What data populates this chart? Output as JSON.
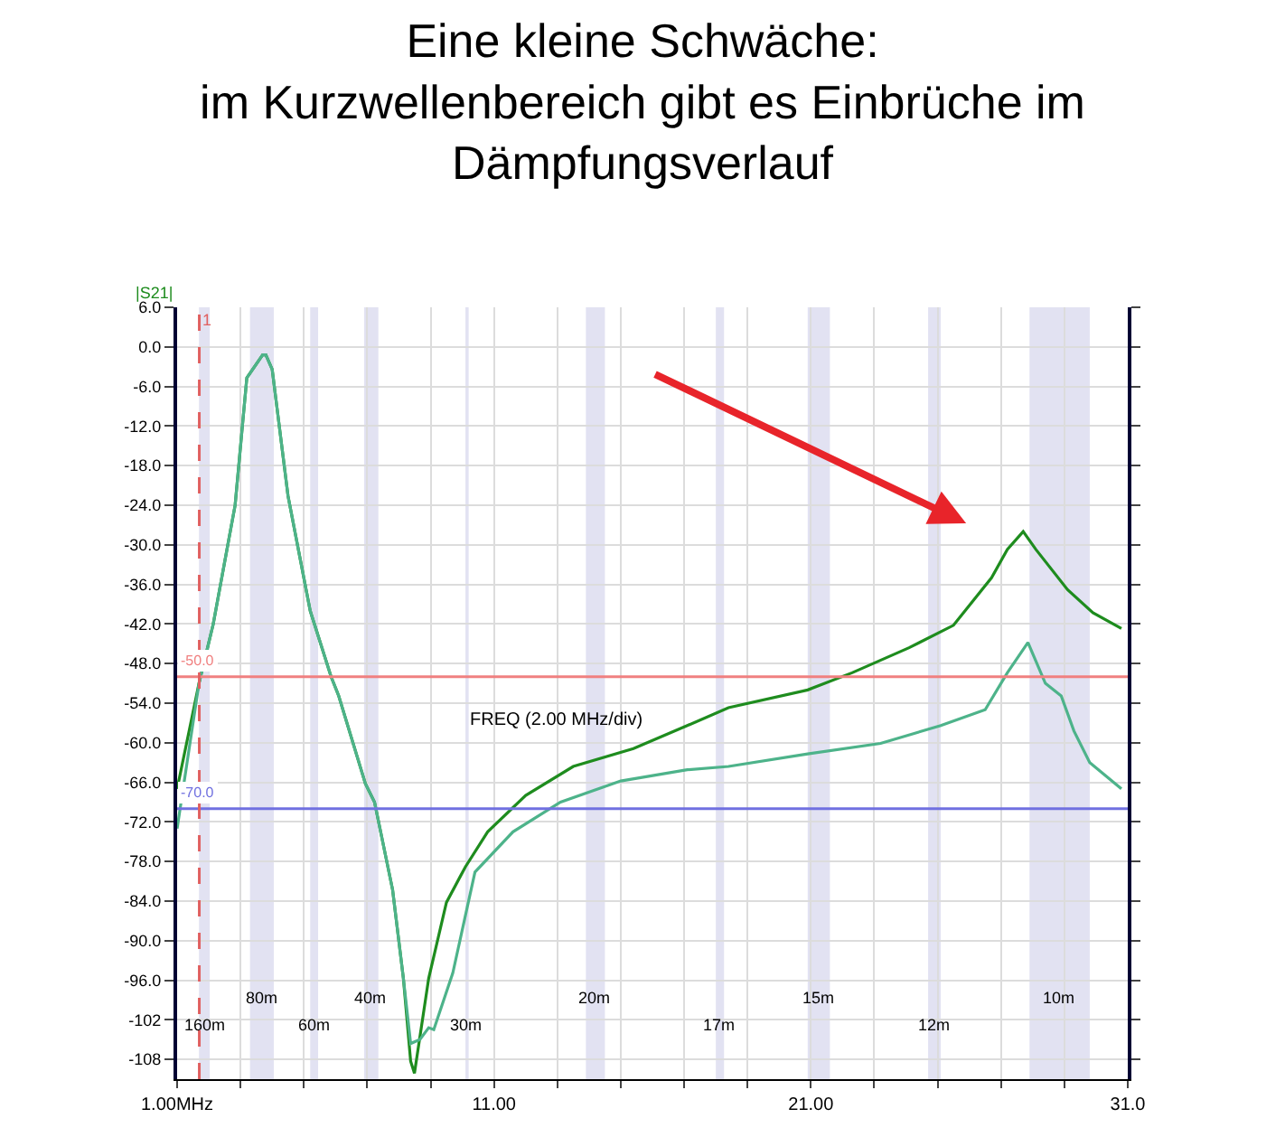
{
  "chart_data": {
    "type": "line",
    "title": "Eine kleine Schwäche:\nim Kurzwellenbereich gibt es Einbrüche im\nDämpfungsverlauf",
    "xlabel": "FREQ (2.00 MHz/div)",
    "ylabel": "|S21|",
    "xlim": [
      1,
      31
    ],
    "ylim": [
      -111,
      6
    ],
    "xticks": [
      {
        "value": 1,
        "label": "1.00MHz"
      },
      {
        "value": 3,
        "label": null
      },
      {
        "value": 5,
        "label": null
      },
      {
        "value": 7,
        "label": null
      },
      {
        "value": 9,
        "label": null
      },
      {
        "value": 11,
        "label": "11.00"
      },
      {
        "value": 13,
        "label": null
      },
      {
        "value": 15,
        "label": null
      },
      {
        "value": 17,
        "label": null
      },
      {
        "value": 19,
        "label": null
      },
      {
        "value": 21,
        "label": "21.00"
      },
      {
        "value": 23,
        "label": null
      },
      {
        "value": 25,
        "label": null
      },
      {
        "value": 27,
        "label": null
      },
      {
        "value": 29,
        "label": null
      },
      {
        "value": 31,
        "label": "31.0"
      }
    ],
    "yticks": [
      {
        "value": 6,
        "label": "6.0"
      },
      {
        "value": 0,
        "label": "0.0"
      },
      {
        "value": -6,
        "label": "-6.0"
      },
      {
        "value": -12,
        "label": "-12.0"
      },
      {
        "value": -18,
        "label": "-18.0"
      },
      {
        "value": -24,
        "label": "-24.0"
      },
      {
        "value": -30,
        "label": "-30.0"
      },
      {
        "value": -36,
        "label": "-36.0"
      },
      {
        "value": -42,
        "label": "-42.0"
      },
      {
        "value": -48,
        "label": "-48.0"
      },
      {
        "value": -54,
        "label": "-54.0"
      },
      {
        "value": -60,
        "label": "-60.0"
      },
      {
        "value": -66,
        "label": "-66.0"
      },
      {
        "value": -72,
        "label": "-72.0"
      },
      {
        "value": -78,
        "label": "-78.0"
      },
      {
        "value": -84,
        "label": "-84.0"
      },
      {
        "value": -90,
        "label": "-90.0"
      },
      {
        "value": -96,
        "label": "-96.0"
      },
      -102,
      -108
    ],
    "grid": true,
    "marker": "none",
    "line_style": "solid",
    "series": [
      {
        "color": "#1e8c1e",
        "x": [
          1,
          1.69,
          2.14,
          2.83,
          3.2,
          3.7,
          3.8,
          4.0,
          4.5,
          5.2,
          5.86,
          6.1,
          6.94,
          7.23,
          7.8,
          8.14,
          8.37,
          8.49,
          8.94,
          9.5,
          10.1,
          10.8,
          12,
          13.5,
          15.4,
          17.1,
          18.4,
          20.9,
          22.3,
          24.1,
          25.5,
          26.7,
          27.2,
          27.7,
          28.1,
          29.1,
          29.9,
          30.8
        ],
        "values": [
          -67,
          -51,
          -42,
          -24,
          -4.7,
          -1.2,
          -1.2,
          -3.4,
          -22.6,
          -40,
          -50,
          -52.9,
          -66.2,
          -69,
          -82.3,
          -95.7,
          -108.3,
          -110.1,
          -95.7,
          -84.2,
          -78.8,
          -73.5,
          -68,
          -63.6,
          -60.9,
          -57.4,
          -54.7,
          -52,
          -49.4,
          -45.6,
          -42.2,
          -35,
          -30.7,
          -28,
          -30.7,
          -36.8,
          -40.3,
          -42.7
        ]
      },
      {
        "color": "#4db38a",
        "x": [
          1,
          1.69,
          2.14,
          2.83,
          3.2,
          3.7,
          3.8,
          4.0,
          4.5,
          5.2,
          5.86,
          6.1,
          6.94,
          7.23,
          7.8,
          8.14,
          8.37,
          8.66,
          8.94,
          9.1,
          9.7,
          10.4,
          11.6,
          13.1,
          15,
          17.1,
          18.4,
          20.9,
          23.2,
          25.1,
          26.5,
          27.2,
          27.85,
          28.4,
          28.9,
          29.3,
          29.8,
          30.8
        ],
        "values": [
          -73,
          -51,
          -42,
          -24,
          -4.7,
          -1.2,
          -1.2,
          -3.4,
          -22.6,
          -40,
          -50,
          -52.9,
          -66.2,
          -69,
          -82.3,
          -95.7,
          -105.6,
          -105,
          -103.2,
          -103.5,
          -94.9,
          -79.6,
          -73.5,
          -69,
          -65.8,
          -64.1,
          -63.6,
          -61.7,
          -60.1,
          -57.4,
          -55,
          -49.4,
          -44.8,
          -51,
          -52.9,
          -58.2,
          -63,
          -67
        ]
      }
    ],
    "ref_lines": [
      {
        "axis": "y",
        "value": -50,
        "label": "-50.0",
        "color": "#f08080"
      },
      {
        "axis": "y",
        "value": -70,
        "label": "-70.0",
        "color": "#7070e0"
      },
      {
        "axis": "x",
        "value": 1.7,
        "color": "#e06060",
        "line_style": "dashed"
      }
    ],
    "annotations": [
      {
        "text": "1",
        "x": 1.7,
        "y": 4
      }
    ],
    "bands": [
      {
        "axis": "x",
        "from": 1.69,
        "to": 2.03,
        "label": "160m",
        "color": "#e2e2f2"
      },
      {
        "axis": "x",
        "from": 3.3,
        "to": 4.05,
        "label": "80m",
        "color": "#e2e2f2"
      },
      {
        "axis": "x",
        "from": 5.2,
        "to": 5.45,
        "label": "60m",
        "color": "#e2e2f2"
      },
      {
        "axis": "x",
        "from": 6.9,
        "to": 7.35,
        "label": "40m",
        "color": "#e2e2f2"
      },
      {
        "axis": "x",
        "from": 10.1,
        "to": 10.2,
        "label": "30m",
        "color": "#e2e2f2"
      },
      {
        "axis": "x",
        "from": 13.9,
        "to": 14.5,
        "label": "20m",
        "color": "#e2e2f2"
      },
      {
        "axis": "x",
        "from": 18.0,
        "to": 18.26,
        "label": "17m",
        "color": "#e2e2f2"
      },
      {
        "axis": "x",
        "from": 20.9,
        "to": 21.6,
        "label": "15m",
        "color": "#e2e2f2"
      },
      {
        "axis": "x",
        "from": 24.7,
        "to": 25.1,
        "label": "12m",
        "color": "#e2e2f2"
      },
      {
        "axis": "x",
        "from": 27.9,
        "to": 29.8,
        "label": "10m",
        "color": "#e2e2f2"
      }
    ]
  }
}
